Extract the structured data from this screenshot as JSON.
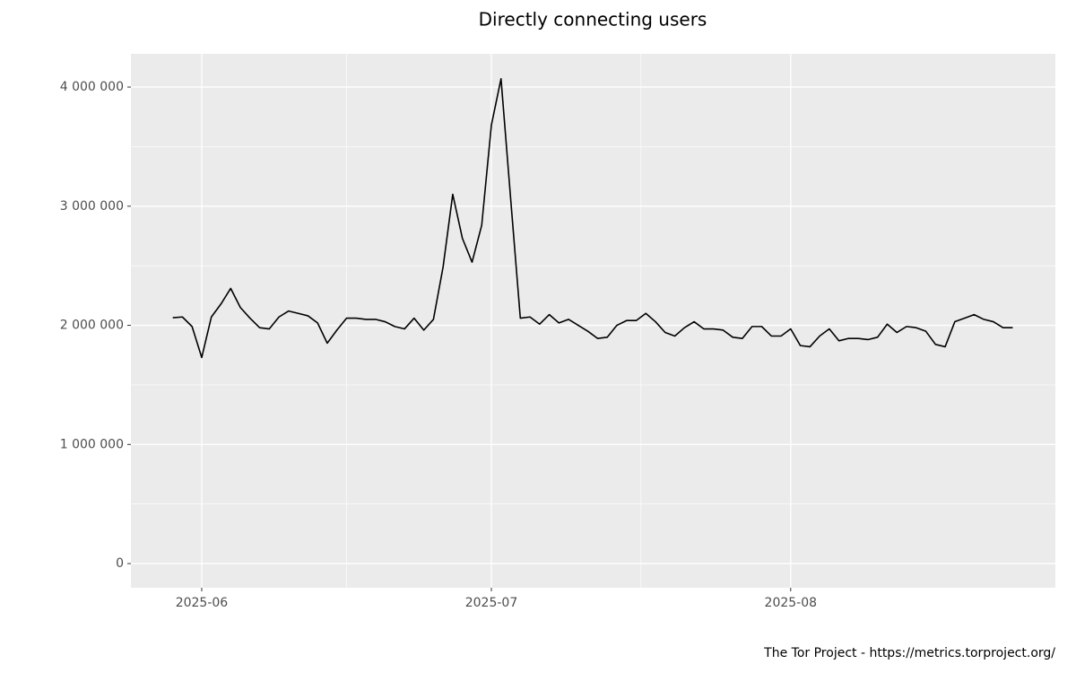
{
  "chart_data": {
    "type": "line",
    "title": "Directly connecting users",
    "caption": "The Tor Project - https://metrics.torproject.org/",
    "x": [
      "2025-05-29",
      "2025-05-30",
      "2025-05-31",
      "2025-06-01",
      "2025-06-02",
      "2025-06-03",
      "2025-06-04",
      "2025-06-05",
      "2025-06-06",
      "2025-06-07",
      "2025-06-08",
      "2025-06-09",
      "2025-06-10",
      "2025-06-11",
      "2025-06-12",
      "2025-06-13",
      "2025-06-14",
      "2025-06-15",
      "2025-06-16",
      "2025-06-17",
      "2025-06-18",
      "2025-06-19",
      "2025-06-20",
      "2025-06-21",
      "2025-06-22",
      "2025-06-23",
      "2025-06-24",
      "2025-06-25",
      "2025-06-26",
      "2025-06-27",
      "2025-06-28",
      "2025-06-29",
      "2025-06-30",
      "2025-07-01",
      "2025-07-02",
      "2025-07-03",
      "2025-07-04",
      "2025-07-05",
      "2025-07-06",
      "2025-07-07",
      "2025-07-08",
      "2025-07-09",
      "2025-07-10",
      "2025-07-11",
      "2025-07-12",
      "2025-07-13",
      "2025-07-14",
      "2025-07-15",
      "2025-07-16",
      "2025-07-17",
      "2025-07-18",
      "2025-07-19",
      "2025-07-20",
      "2025-07-21",
      "2025-07-22",
      "2025-07-23",
      "2025-07-24",
      "2025-07-25",
      "2025-07-26",
      "2025-07-27",
      "2025-07-28",
      "2025-07-29",
      "2025-07-30",
      "2025-07-31",
      "2025-08-01",
      "2025-08-02",
      "2025-08-03",
      "2025-08-04",
      "2025-08-05",
      "2025-08-06",
      "2025-08-07",
      "2025-08-08",
      "2025-08-09",
      "2025-08-10",
      "2025-08-11",
      "2025-08-12",
      "2025-08-13",
      "2025-08-14",
      "2025-08-15",
      "2025-08-16",
      "2025-08-17",
      "2025-08-18",
      "2025-08-19",
      "2025-08-20",
      "2025-08-21",
      "2025-08-22",
      "2025-08-23",
      "2025-08-24"
    ],
    "series": [
      {
        "name": "Directly connecting users",
        "color": "#000000",
        "values": [
          2064000,
          2070000,
          1990000,
          1730000,
          2070000,
          2180000,
          2310000,
          2150000,
          2060000,
          1980000,
          1970000,
          2070000,
          2120000,
          2100000,
          2080000,
          2020000,
          1850000,
          1960000,
          2060000,
          2060000,
          2050000,
          2050000,
          2030000,
          1990000,
          1970000,
          2060000,
          1960000,
          2050000,
          2490000,
          3100000,
          2730000,
          2530000,
          2840000,
          3680000,
          4070000,
          3060000,
          2060000,
          2070000,
          2010000,
          2090000,
          2020000,
          2050000,
          2000000,
          1950000,
          1890000,
          1900000,
          2000000,
          2040000,
          2040000,
          2100000,
          2030000,
          1940000,
          1910000,
          1980000,
          2030000,
          1970000,
          1970000,
          1960000,
          1900000,
          1890000,
          1990000,
          1990000,
          1910000,
          1910000,
          1970000,
          1830000,
          1820000,
          1910000,
          1970000,
          1870000,
          1890000,
          1890000,
          1880000,
          1900000,
          2010000,
          1940000,
          1990000,
          1980000,
          1950000,
          1840000,
          1820000,
          2030000,
          2060000,
          2090000,
          2050000,
          2030000,
          1980000,
          1980000
        ]
      }
    ],
    "xlim": [
      "2025-05-24T16:00:00Z",
      "2025-08-28T10:00:00Z"
    ],
    "xticks": [
      {
        "value": "2025-06-01",
        "label": "2025-06"
      },
      {
        "value": "2025-07-01",
        "label": "2025-07"
      },
      {
        "value": "2025-08-01",
        "label": "2025-08"
      }
    ],
    "ylim": [
      -203000,
      4279000
    ],
    "yticks": [
      0,
      {
        "value": 1000000,
        "label": "1 000 000"
      },
      {
        "value": 2000000,
        "label": "2 000 000"
      },
      {
        "value": 3000000,
        "label": "3 000 000"
      },
      {
        "value": 4000000,
        "label": "4 000 000"
      }
    ],
    "grid": true
  }
}
